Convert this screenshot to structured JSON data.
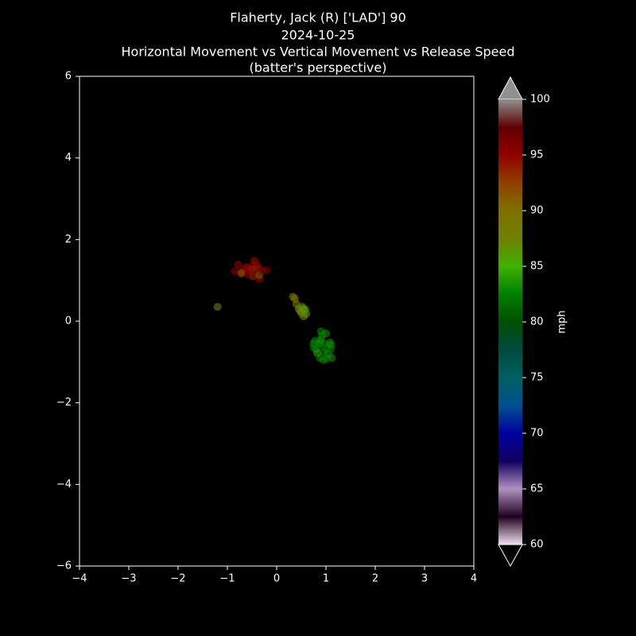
{
  "chart_data": {
    "type": "scatter",
    "title": [
      "Flaherty, Jack (R) ['LAD'] 90",
      "2024-10-25",
      "Horizontal Movement vs Vertical Movement vs Release Speed",
      "(batter's perspective)"
    ],
    "x": [
      -0.85,
      -0.78,
      -0.7,
      -0.65,
      -0.6,
      -0.55,
      -0.5,
      -0.48,
      -0.45,
      -0.42,
      -0.4,
      -0.38,
      -0.35,
      -0.35,
      -0.3,
      -0.2,
      -0.72,
      -0.58,
      -0.5,
      -1.2,
      0.33,
      0.37,
      0.4,
      0.45,
      0.5,
      0.52,
      0.55,
      0.58,
      0.6,
      0.55,
      0.48,
      0.75,
      0.78,
      0.8,
      0.85,
      0.88,
      0.9,
      0.9,
      0.92,
      0.95,
      0.97,
      1.0,
      1.0,
      1.02,
      1.05,
      1.08,
      1.1,
      1.12,
      0.82,
      0.95,
      1.1,
      0.75,
      0.88
    ],
    "y": [
      1.22,
      1.38,
      1.2,
      1.3,
      1.33,
      1.25,
      1.35,
      1.1,
      1.48,
      1.22,
      1.38,
      1.3,
      1.03,
      1.13,
      1.25,
      1.25,
      1.17,
      1.15,
      1.28,
      0.35,
      0.6,
      0.55,
      0.42,
      0.3,
      0.2,
      0.35,
      0.12,
      0.28,
      0.18,
      0.3,
      0.25,
      -0.55,
      -0.48,
      -0.68,
      -0.6,
      -0.9,
      -0.45,
      -0.25,
      -0.35,
      -0.75,
      -0.55,
      -0.3,
      -0.65,
      -0.92,
      -0.8,
      -0.52,
      -0.68,
      -0.9,
      -0.78,
      -0.95,
      -0.58,
      -0.65,
      -0.52
    ],
    "c": [
      95.5,
      94.8,
      93,
      95,
      96,
      95.2,
      95.5,
      93.5,
      94.5,
      96,
      95,
      94.2,
      95,
      91.5,
      95.5,
      96,
      92,
      95,
      94,
      88.5,
      89,
      89.5,
      88,
      87,
      86.5,
      86.8,
      86.5,
      86.2,
      86.8,
      86,
      87.5,
      83,
      82.5,
      83.5,
      82,
      83,
      83.2,
      82.8,
      82.5,
      83,
      82,
      83,
      82.5,
      82.3,
      83.4,
      82.8,
      82,
      83,
      84,
      82.7,
      83.3,
      82,
      83.1
    ],
    "xlim": [
      -4,
      4
    ],
    "xticks": [
      {
        "value": -4,
        "label": "−4"
      },
      {
        "value": -3,
        "label": "−3"
      },
      {
        "value": -2,
        "label": "−2"
      },
      {
        "value": -1,
        "label": "−1"
      },
      0,
      1,
      2,
      3,
      4
    ],
    "ylim": [
      -6,
      6
    ],
    "yticks": [
      {
        "value": -6,
        "label": "−6"
      },
      {
        "value": -4,
        "label": "−4"
      },
      {
        "value": -2,
        "label": "−2"
      },
      0,
      2,
      4,
      6
    ],
    "clim": [
      60,
      100
    ],
    "cticks": [
      60,
      65,
      70,
      75,
      80,
      85,
      90,
      95,
      100
    ],
    "clabel": "mph",
    "colormap": [
      "#f0e0f0",
      "#200020",
      "#b090c0",
      "#100060",
      "#0000a0",
      "#005090",
      "#006060",
      "#004a40",
      "#005000",
      "#008000",
      "#40b000",
      "#708000",
      "#807000",
      "#904000",
      "#900000",
      "#600000",
      "#909090"
    ],
    "marker_opacity": 0.6
  }
}
